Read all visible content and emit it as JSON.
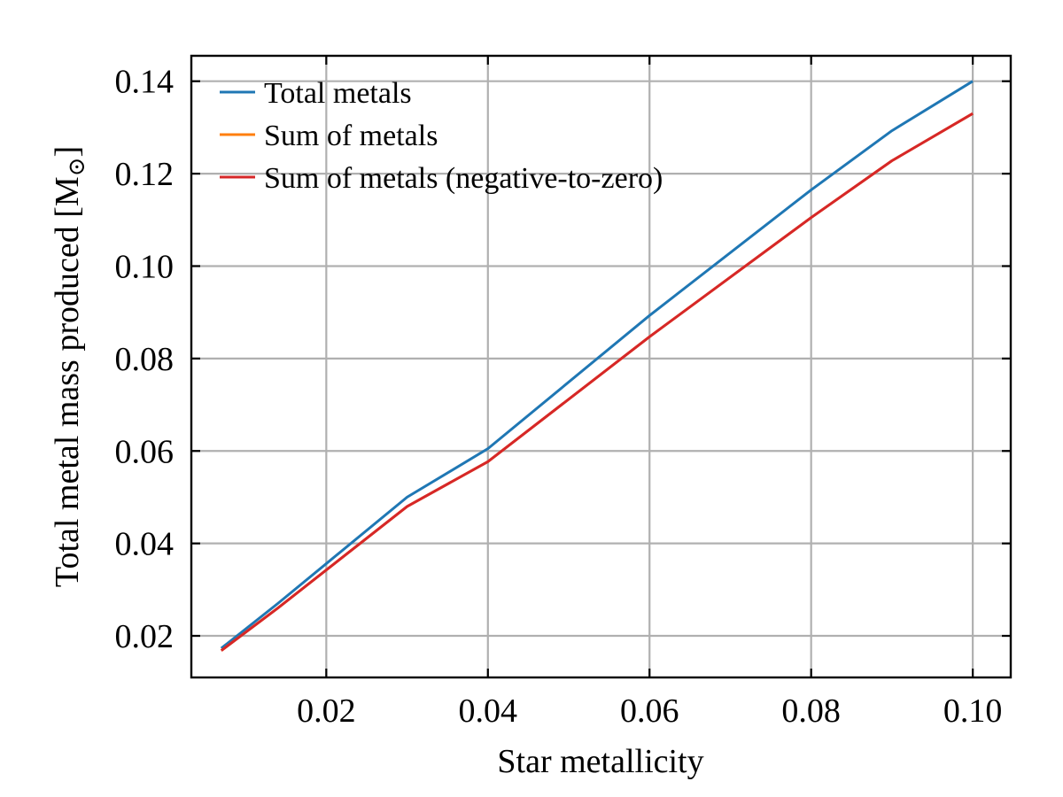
{
  "chart_data": {
    "type": "line",
    "title": "",
    "xlabel": "Star metallicity",
    "ylabel_main": "Total metal mass produced [M",
    "ylabel_sub": "⊙",
    "ylabel_end": "]",
    "xlim": [
      0.0033,
      0.1047
    ],
    "ylim": [
      0.011,
      0.1455
    ],
    "xticks": [
      0.02,
      0.04,
      0.06,
      0.08,
      0.1
    ],
    "xtick_labels": [
      "0.02",
      "0.04",
      "0.06",
      "0.08",
      "0.10"
    ],
    "yticks": [
      0.02,
      0.04,
      0.06,
      0.08,
      0.1,
      0.12,
      0.14
    ],
    "ytick_labels": [
      "0.02",
      "0.04",
      "0.06",
      "0.08",
      "0.10",
      "0.12",
      "0.14"
    ],
    "grid": true,
    "legend_position": "top-left",
    "x": [
      0.007,
      0.014,
      0.03,
      0.04,
      0.06,
      0.08,
      0.09,
      0.1
    ],
    "series": [
      {
        "name": "Total metals",
        "color": "#1f77b4",
        "values": [
          0.0173,
          0.027,
          0.05,
          0.0605,
          0.0893,
          0.1165,
          0.1293,
          0.14
        ]
      },
      {
        "name": "Sum of metals",
        "color": "#ff7f0e",
        "values": [
          0.0168,
          0.026,
          0.048,
          0.0577,
          0.0847,
          0.1105,
          0.1228,
          0.133
        ]
      },
      {
        "name": "Sum of metals (negative-to-zero)",
        "color": "#d62728",
        "values": [
          0.0168,
          0.026,
          0.048,
          0.0577,
          0.0847,
          0.1105,
          0.1228,
          0.133
        ]
      }
    ]
  }
}
